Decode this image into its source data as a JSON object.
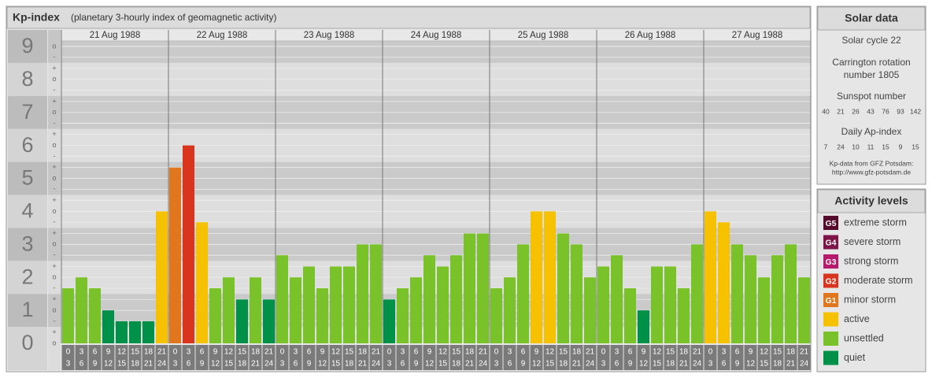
{
  "chart_data": {
    "type": "bar",
    "title": "Kp-index",
    "subtitle": "(planetary 3-hourly index of geomagnetic activity)",
    "days": [
      "21 Aug 1988",
      "22 Aug 1988",
      "23 Aug 1988",
      "24 Aug 1988",
      "25 Aug 1988",
      "26 Aug 1988",
      "27 Aug 1988"
    ],
    "hours": [
      0,
      3,
      6,
      9,
      12,
      15,
      18,
      21,
      24
    ],
    "values": [
      1.67,
      2,
      1.67,
      1,
      0.67,
      0.67,
      0.67,
      4,
      5.33,
      6,
      3.67,
      1.67,
      2,
      1.33,
      2,
      1.33,
      2.67,
      2,
      2.33,
      1.67,
      2.33,
      2.33,
      3,
      3,
      1.33,
      1.67,
      2,
      2.67,
      2.33,
      2.67,
      3.33,
      3.33,
      1.67,
      2,
      3,
      4,
      4,
      3.33,
      3,
      2,
      2.33,
      2.67,
      1.67,
      1,
      2.33,
      2.33,
      1.67,
      3,
      4,
      3.67,
      3,
      2.67,
      2,
      2.67,
      3,
      2
    ],
    "colors": [
      "#7ac22a",
      "#7ac22a",
      "#7ac22a",
      "#009149",
      "#009149",
      "#009149",
      "#009149",
      "#f6c200",
      "#e0761d",
      "#d8341e",
      "#f6c200",
      "#7ac22a",
      "#7ac22a",
      "#009149",
      "#7ac22a",
      "#009149",
      "#7ac22a",
      "#7ac22a",
      "#7ac22a",
      "#7ac22a",
      "#7ac22a",
      "#7ac22a",
      "#7ac22a",
      "#7ac22a",
      "#009149",
      "#7ac22a",
      "#7ac22a",
      "#7ac22a",
      "#7ac22a",
      "#7ac22a",
      "#7ac22a",
      "#7ac22a",
      "#7ac22a",
      "#7ac22a",
      "#7ac22a",
      "#f6c200",
      "#f6c200",
      "#7ac22a",
      "#7ac22a",
      "#7ac22a",
      "#7ac22a",
      "#7ac22a",
      "#7ac22a",
      "#009149",
      "#7ac22a",
      "#7ac22a",
      "#7ac22a",
      "#7ac22a",
      "#f6c200",
      "#f6c200",
      "#7ac22a",
      "#7ac22a",
      "#7ac22a",
      "#7ac22a",
      "#7ac22a",
      "#7ac22a"
    ],
    "ylim": [
      0,
      9.5
    ],
    "yticks": [
      0,
      1,
      2,
      3,
      4,
      5,
      6,
      7,
      8,
      9
    ],
    "yminorticks": [
      {
        "value": 0,
        "label": "o"
      },
      {
        "value": 0.33,
        "label": "+"
      },
      {
        "value": 0.67,
        "label": "-"
      },
      {
        "value": 1,
        "label": "o"
      },
      {
        "value": 1.33,
        "label": "+"
      },
      {
        "value": 1.67,
        "label": "-"
      },
      {
        "value": 2,
        "label": "o"
      },
      {
        "value": 2.33,
        "label": "+"
      },
      {
        "value": 2.67,
        "label": "-"
      },
      {
        "value": 3,
        "label": "o"
      },
      {
        "value": 3.33,
        "label": "+"
      },
      {
        "value": 3.67,
        "label": "-"
      },
      {
        "value": 4,
        "label": "o"
      },
      {
        "value": 4.33,
        "label": "+"
      },
      {
        "value": 4.67,
        "label": "-"
      },
      {
        "value": 5,
        "label": "o"
      },
      {
        "value": 5.33,
        "label": "+"
      },
      {
        "value": 5.67,
        "label": "-"
      },
      {
        "value": 6,
        "label": "o"
      },
      {
        "value": 6.33,
        "label": "+"
      },
      {
        "value": 6.67,
        "label": "-"
      },
      {
        "value": 7,
        "label": "o"
      },
      {
        "value": 7.33,
        "label": "+"
      },
      {
        "value": 7.67,
        "label": "-"
      },
      {
        "value": 8,
        "label": "o"
      },
      {
        "value": 8.33,
        "label": "+"
      },
      {
        "value": 8.67,
        "label": "-"
      },
      {
        "value": 9,
        "label": "o"
      }
    ],
    "grid": true
  },
  "solar": {
    "title": "Solar data",
    "cycle": "Solar cycle 22",
    "carrington": [
      "Carrington rotation",
      "number 1805"
    ],
    "sunspot_title": "Sunspot number",
    "sunspot": [
      40,
      21,
      26,
      43,
      76,
      93,
      142
    ],
    "ap_title": "Daily Ap-index",
    "ap": [
      7,
      24,
      10,
      11,
      15,
      9,
      15
    ],
    "source": [
      "Kp-data from GFZ Potsdam:",
      "http://www.gfz-potsdam.de"
    ]
  },
  "legend": {
    "title": "Activity levels",
    "items": [
      {
        "badge": "G5",
        "label": "extreme storm",
        "color": "#560a2c"
      },
      {
        "badge": "G4",
        "label": "severe storm",
        "color": "#7e1548"
      },
      {
        "badge": "G3",
        "label": "strong storm",
        "color": "#b51a6c"
      },
      {
        "badge": "G2",
        "label": "moderate storm",
        "color": "#d8341e"
      },
      {
        "badge": "G1",
        "label": "minor storm",
        "color": "#e0761d"
      },
      {
        "label": "active",
        "color": "#f6c200"
      },
      {
        "label": "unsettled",
        "color": "#7ac22a"
      },
      {
        "label": "quiet",
        "color": "#009149"
      }
    ]
  }
}
